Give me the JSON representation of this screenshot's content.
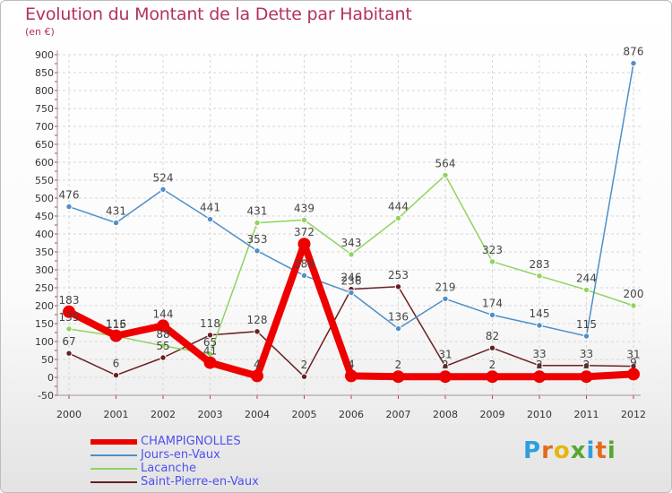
{
  "title": "Evolution du Montant de la Dette par Habitant",
  "subtitle": "(en €)",
  "logo": {
    "letters": [
      "P",
      "r",
      "o",
      "x",
      "i",
      "t",
      "i"
    ],
    "colors": [
      "#2f9ee0",
      "#e36b1d",
      "#e6b60e",
      "#54a82f",
      "#2f9ee0",
      "#e36b1d",
      "#54a82f"
    ]
  },
  "chart_data": {
    "type": "line",
    "x": [
      "2000",
      "2001",
      "2002",
      "2003",
      "2004",
      "2005",
      "2006",
      "2007",
      "2008",
      "2009",
      "2010",
      "2011",
      "2012"
    ],
    "ylim": [
      -50,
      900
    ],
    "yticks": [
      "-50",
      "0",
      "50",
      "100",
      "150",
      "200",
      "250",
      "300",
      "350",
      "400",
      "450",
      "500",
      "550",
      "600",
      "650",
      "700",
      "750",
      "800",
      "850",
      "900"
    ],
    "grid": true,
    "legend_position": "bottom-left",
    "series": [
      {
        "name": "CHAMPIGNOLLES",
        "color": "#ee0000",
        "values": [
          183,
          116,
          144,
          41,
          4,
          372,
          4,
          2,
          2,
          2,
          2,
          2,
          9
        ],
        "labels": [
          "183",
          "116",
          "144",
          "41",
          "4",
          "372",
          "4",
          "2",
          "2",
          "2",
          "2",
          "2",
          "9"
        ]
      },
      {
        "name": "Jours-en-Vaux",
        "color": "#4f8fc9",
        "values": [
          476,
          431,
          524,
          441,
          353,
          284,
          236,
          136,
          219,
          174,
          145,
          115,
          876
        ],
        "labels": [
          "476",
          "431",
          "524",
          "441",
          "353",
          "284",
          "236",
          "136",
          "219",
          "174",
          "145",
          "115",
          "876"
        ]
      },
      {
        "name": "Lacanche",
        "color": "#8fd45e",
        "values": [
          135,
          115,
          88,
          65,
          431,
          439,
          343,
          444,
          564,
          323,
          283,
          244,
          200
        ],
        "labels": [
          "135",
          "115",
          "88",
          "65",
          "431",
          "439",
          "343",
          "444",
          "564",
          "323",
          "283",
          "244",
          "200"
        ]
      },
      {
        "name": "Saint-Pierre-en-Vaux",
        "color": "#6b1f1f",
        "values": [
          67,
          6,
          55,
          118,
          128,
          2,
          246,
          253,
          31,
          82,
          33,
          33,
          31
        ],
        "labels": [
          "67",
          "6",
          "55",
          "118",
          "128",
          "2",
          "246",
          "253",
          "31",
          "82",
          "33",
          "33",
          "31"
        ]
      }
    ]
  }
}
